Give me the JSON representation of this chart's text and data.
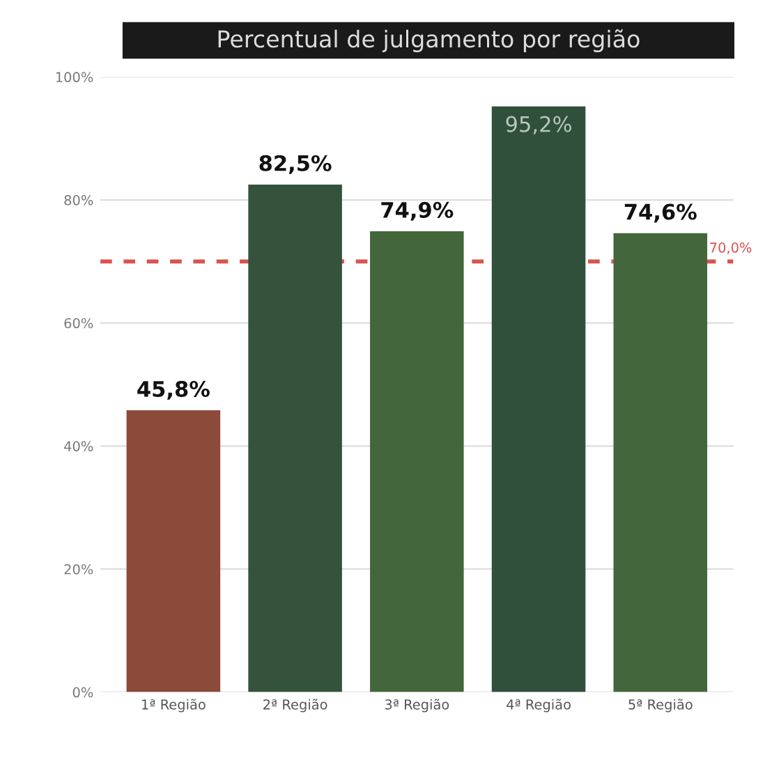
{
  "chart_data": {
    "type": "bar",
    "title": "Percentual de julgamento por região",
    "categories": [
      "1ª Região",
      "2ª Região",
      "3ª Região",
      "4ª Região",
      "5ª Região"
    ],
    "values": [
      45.8,
      82.5,
      74.9,
      95.2,
      74.6
    ],
    "colors": [
      "#8b4a3a",
      "#34523c",
      "#44663c",
      "#30503c",
      "#44663c"
    ],
    "value_labels": [
      "45,8%",
      "82,5%",
      "74,9%",
      "95,2%",
      "74,6%"
    ],
    "ylim": [
      0,
      100
    ],
    "yticks": [
      {
        "value": 0,
        "label": "0%"
      },
      {
        "value": 20,
        "label": "20%"
      },
      {
        "value": 40,
        "label": "40%"
      },
      {
        "value": 60,
        "label": "60%"
      },
      {
        "value": 80,
        "label": "80%"
      },
      {
        "value": 100,
        "label": "100%"
      }
    ],
    "grid": "y",
    "ref_lines": [
      {
        "axis": "y",
        "value": 70,
        "label": "70,0%",
        "color": "#d9534f",
        "line_style": "dashed"
      }
    ]
  }
}
